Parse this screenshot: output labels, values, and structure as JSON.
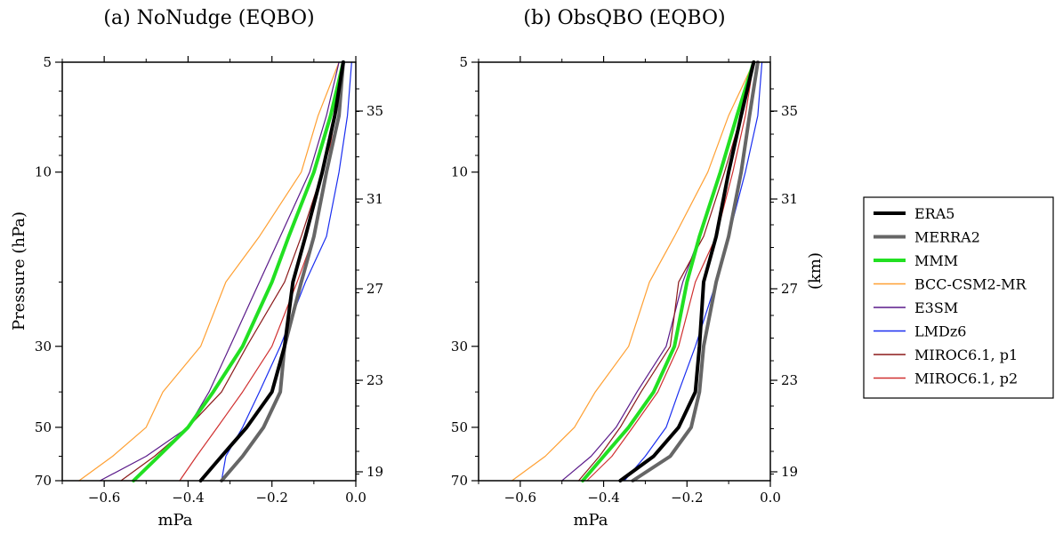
{
  "chart_data": [
    {
      "type": "line",
      "title": "(a) NoNudge (EQBO)",
      "xlabel": "mPa",
      "ylabel": "Pressure (hPa)",
      "y2label": "",
      "xlim": [
        -0.7,
        0.0
      ],
      "ylim": [
        70,
        5
      ],
      "yscale": "log",
      "xticks": [
        "−0.6",
        "−0.4",
        "−0.2",
        "0.0"
      ],
      "yticks": [
        "5",
        "10",
        "30",
        "50",
        "70"
      ],
      "y2ticks": [
        "35",
        "31",
        "27",
        "23",
        "19"
      ],
      "series": [
        {
          "name": "ERA5",
          "p": [
            5,
            7,
            10,
            15,
            20,
            30,
            40,
            50,
            60,
            70
          ],
          "values": [
            -0.03,
            -0.05,
            -0.08,
            -0.12,
            -0.15,
            -0.17,
            -0.2,
            -0.26,
            -0.32,
            -0.37
          ]
        },
        {
          "name": "MERRA2",
          "p": [
            5,
            7,
            10,
            15,
            20,
            30,
            40,
            50,
            60,
            70
          ],
          "values": [
            -0.03,
            -0.04,
            -0.07,
            -0.1,
            -0.13,
            -0.17,
            -0.18,
            -0.22,
            -0.27,
            -0.32
          ]
        },
        {
          "name": "MMM",
          "p": [
            5,
            7,
            10,
            15,
            20,
            30,
            40,
            50,
            60,
            70
          ],
          "values": [
            -0.03,
            -0.06,
            -0.1,
            -0.16,
            -0.2,
            -0.27,
            -0.34,
            -0.4,
            -0.47,
            -0.53
          ]
        },
        {
          "name": "BCC-CSM2-MR",
          "p": [
            5,
            7,
            10,
            15,
            20,
            30,
            40,
            50,
            60,
            70
          ],
          "values": [
            -0.04,
            -0.09,
            -0.13,
            -0.23,
            -0.31,
            -0.37,
            -0.46,
            -0.5,
            -0.58,
            -0.66
          ]
        },
        {
          "name": "E3SM",
          "p": [
            5,
            7,
            10,
            15,
            20,
            30,
            40,
            50,
            60,
            70
          ],
          "values": [
            -0.04,
            -0.07,
            -0.11,
            -0.18,
            -0.23,
            -0.3,
            -0.35,
            -0.4,
            -0.5,
            -0.61
          ]
        },
        {
          "name": "LMDz6",
          "p": [
            5,
            7,
            10,
            15,
            20,
            30,
            40,
            50,
            60,
            70
          ],
          "values": [
            -0.01,
            -0.02,
            -0.04,
            -0.07,
            -0.12,
            -0.18,
            -0.23,
            -0.27,
            -0.31,
            -0.32
          ]
        },
        {
          "name": "MIROC6.1, p1",
          "p": [
            5,
            7,
            10,
            15,
            20,
            30,
            40,
            50,
            60,
            70
          ],
          "values": [
            -0.03,
            -0.05,
            -0.08,
            -0.13,
            -0.17,
            -0.26,
            -0.32,
            -0.4,
            -0.48,
            -0.56
          ]
        },
        {
          "name": "MIROC6.1, p2",
          "p": [
            5,
            7,
            10,
            15,
            20,
            30,
            40,
            50,
            60,
            70
          ],
          "values": [
            -0.03,
            -0.05,
            -0.07,
            -0.1,
            -0.14,
            -0.2,
            -0.27,
            -0.33,
            -0.38,
            -0.42
          ]
        }
      ]
    },
    {
      "type": "line",
      "title": "(b) ObsQBO (EQBO)",
      "xlabel": "mPa",
      "ylabel": "",
      "y2label": "(km)",
      "xlim": [
        -0.7,
        0.0
      ],
      "ylim": [
        70,
        5
      ],
      "yscale": "log",
      "xticks": [
        "−0.6",
        "−0.4",
        "−0.2",
        "0.0"
      ],
      "yticks": [
        "5",
        "10",
        "30",
        "50",
        "70"
      ],
      "y2ticks": [
        "35",
        "31",
        "27",
        "23",
        "19"
      ],
      "series": [
        {
          "name": "ERA5",
          "p": [
            5,
            7,
            10,
            15,
            20,
            30,
            40,
            50,
            60,
            70
          ],
          "values": [
            -0.04,
            -0.07,
            -0.1,
            -0.13,
            -0.16,
            -0.17,
            -0.18,
            -0.22,
            -0.28,
            -0.36
          ]
        },
        {
          "name": "MERRA2",
          "p": [
            5,
            7,
            10,
            15,
            20,
            30,
            40,
            50,
            60,
            70
          ],
          "values": [
            -0.03,
            -0.05,
            -0.07,
            -0.1,
            -0.13,
            -0.16,
            -0.17,
            -0.19,
            -0.24,
            -0.33
          ]
        },
        {
          "name": "MMM",
          "p": [
            5,
            7,
            10,
            15,
            20,
            30,
            40,
            50,
            60,
            70
          ],
          "values": [
            -0.04,
            -0.08,
            -0.12,
            -0.17,
            -0.2,
            -0.23,
            -0.28,
            -0.34,
            -0.4,
            -0.45
          ]
        },
        {
          "name": "BCC-CSM2-MR",
          "p": [
            5,
            7,
            10,
            15,
            20,
            30,
            40,
            50,
            60,
            70
          ],
          "values": [
            -0.04,
            -0.1,
            -0.15,
            -0.23,
            -0.29,
            -0.34,
            -0.42,
            -0.47,
            -0.54,
            -0.62
          ]
        },
        {
          "name": "E3SM",
          "p": [
            5,
            7,
            10,
            15,
            20,
            30,
            40,
            50,
            60,
            70
          ],
          "values": [
            -0.04,
            -0.08,
            -0.12,
            -0.17,
            -0.21,
            -0.25,
            -0.32,
            -0.37,
            -0.43,
            -0.5
          ]
        },
        {
          "name": "LMDz6",
          "p": [
            5,
            7,
            10,
            15,
            20,
            30,
            40,
            50,
            60,
            70
          ],
          "values": [
            -0.02,
            -0.03,
            -0.06,
            -0.1,
            -0.13,
            -0.18,
            -0.22,
            -0.25,
            -0.3,
            -0.35
          ]
        },
        {
          "name": "MIROC6.1, p1",
          "p": [
            5,
            7,
            10,
            15,
            20,
            30,
            40,
            50,
            60,
            70
          ],
          "values": [
            -0.04,
            -0.07,
            -0.11,
            -0.16,
            -0.22,
            -0.24,
            -0.31,
            -0.36,
            -0.41,
            -0.46
          ]
        },
        {
          "name": "MIROC6.1, p2",
          "p": [
            5,
            7,
            10,
            15,
            20,
            30,
            40,
            50,
            60,
            70
          ],
          "values": [
            -0.04,
            -0.06,
            -0.09,
            -0.13,
            -0.18,
            -0.22,
            -0.27,
            -0.33,
            -0.38,
            -0.44
          ]
        }
      ]
    }
  ],
  "legend": {
    "placement": "right",
    "entries": [
      {
        "name": "ERA5",
        "color": "#000000"
      },
      {
        "name": "MERRA2",
        "color": "#666666"
      },
      {
        "name": "MMM",
        "color": "#22e022"
      },
      {
        "name": "BCC-CSM2-MR",
        "color": "#ffa033"
      },
      {
        "name": "E3SM",
        "color": "#5a1a8a"
      },
      {
        "name": "LMDz6",
        "color": "#1a2ef0"
      },
      {
        "name": "MIROC6.1, p1",
        "color": "#8b1a1a"
      },
      {
        "name": "MIROC6.1, p2",
        "color": "#d03030"
      }
    ]
  },
  "styles": {
    "ERA5": {
      "color": "#000000",
      "width": "thick"
    },
    "MERRA2": {
      "color": "#666666",
      "width": "thick"
    },
    "MMM": {
      "color": "#22e022",
      "width": "thick"
    },
    "BCC-CSM2-MR": {
      "color": "#ffa033",
      "width": "thin"
    },
    "E3SM": {
      "color": "#5a1a8a",
      "width": "thin"
    },
    "LMDz6": {
      "color": "#1a2ef0",
      "width": "thin"
    },
    "MIROC6.1, p1": {
      "color": "#8b1a1a",
      "width": "thin"
    },
    "MIROC6.1, p2": {
      "color": "#d03030",
      "width": "thin"
    }
  }
}
